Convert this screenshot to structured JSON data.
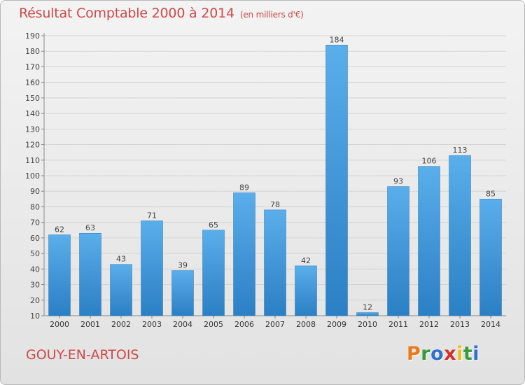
{
  "chart_data": {
    "type": "bar",
    "title": "Résultat Comptable 2000 à 2014",
    "subtitle": "(en milliers d'€)",
    "categories": [
      "2000",
      "2001",
      "2002",
      "2003",
      "2004",
      "2005",
      "2006",
      "2007",
      "2008",
      "2009",
      "2010",
      "2011",
      "2012",
      "2013",
      "2014"
    ],
    "values": [
      62,
      63,
      43,
      71,
      39,
      65,
      89,
      78,
      42,
      184,
      12,
      93,
      106,
      113,
      85
    ],
    "ylim": [
      10,
      190
    ],
    "yticks": [
      10,
      20,
      30,
      40,
      50,
      60,
      70,
      80,
      90,
      100,
      110,
      120,
      130,
      140,
      150,
      160,
      170,
      180,
      190
    ],
    "grid": true,
    "bar_color": "#3f95d8"
  },
  "footer": {
    "place": "GOUY-EN-ARTOIS",
    "logo_text": "Proxiti"
  },
  "colors": {
    "title": "#d04848",
    "logo": [
      "#e87b1e",
      "#3a9a3a",
      "#2f6fd0",
      "#d0302a",
      "#e8c020",
      "#3a9a3a",
      "#2f6fd0"
    ]
  }
}
